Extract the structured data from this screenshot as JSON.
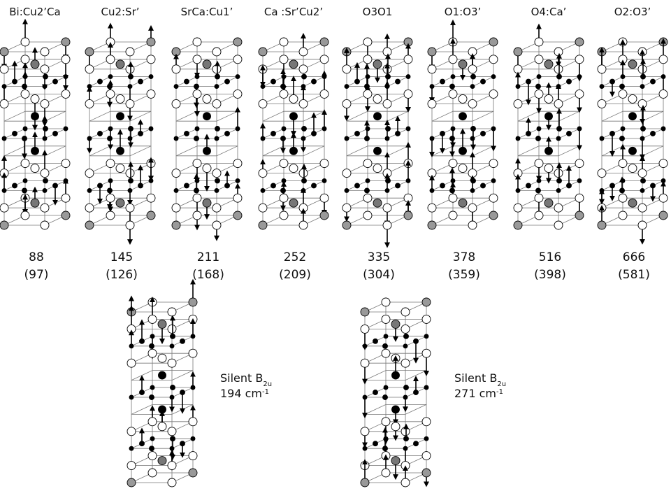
{
  "modes": [
    {
      "label": "Bi:Cu2’Ca",
      "frequency": 88,
      "calculated": "(97)"
    },
    {
      "label": "Cu2:Sr’",
      "frequency": 145,
      "calculated": "(126)"
    },
    {
      "label": "SrCa:Cu1’",
      "frequency": 211,
      "calculated": "(168)"
    },
    {
      "label": "Ca :Sr’Cu2’",
      "frequency": 252,
      "calculated": "(209)"
    },
    {
      "label": "O3O1",
      "frequency": 335,
      "calculated": "(304)"
    },
    {
      "label": "O1:O3’",
      "frequency": 378,
      "calculated": "(359)"
    },
    {
      "label": "O4:Ca’",
      "frequency": 516,
      "calculated": "(398)"
    },
    {
      "label": "O2:O3’",
      "frequency": 666,
      "calculated": "(581)"
    }
  ],
  "silent": [
    {
      "label": "Silent B",
      "subscript": "2u",
      "frequency": "194 cm",
      "superscript": "-1"
    },
    {
      "label": "Silent B",
      "subscript": "2u",
      "frequency": "271 cm",
      "superscript": "-1"
    }
  ]
}
